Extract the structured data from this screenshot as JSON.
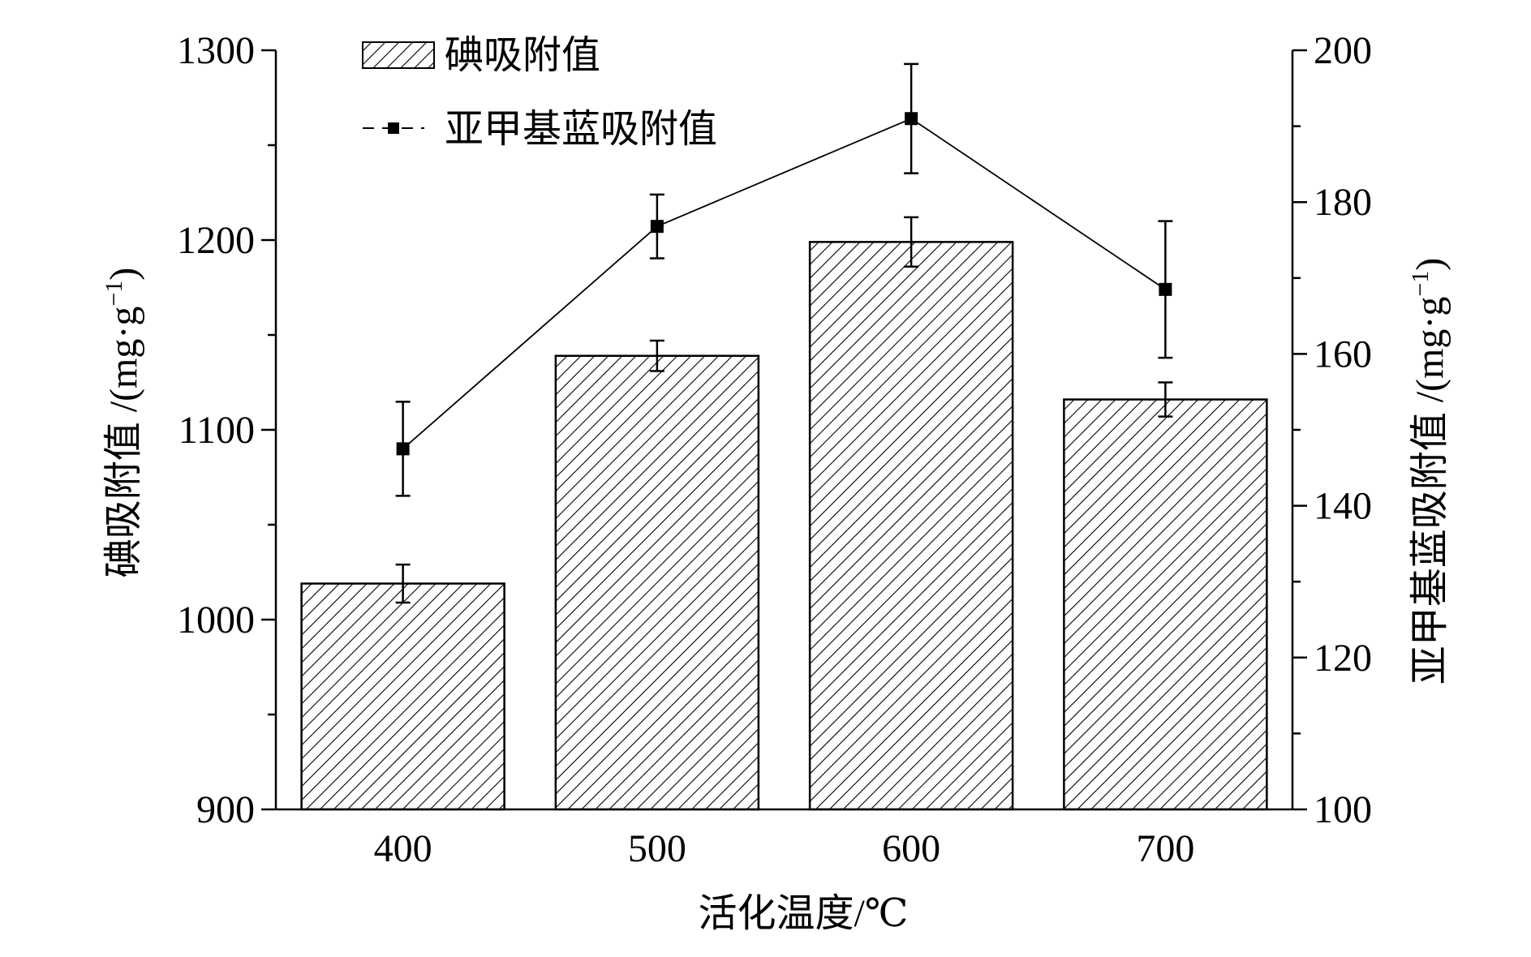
{
  "chart_data": {
    "type": "bar",
    "categories": [
      "400",
      "500",
      "600",
      "700"
    ],
    "xlabel": "活化温度/℃",
    "series": [
      {
        "name": "碘吸附值",
        "type": "bar",
        "axis": "left",
        "values": [
          1019,
          1139,
          1199,
          1116
        ],
        "errors": [
          10,
          8,
          13,
          9
        ]
      },
      {
        "name": "亚甲基蓝吸附值",
        "type": "line",
        "axis": "right",
        "values": [
          147.5,
          176.8,
          191,
          168.5
        ],
        "errors": [
          6.2,
          4.2,
          7.2,
          9.0
        ]
      }
    ],
    "y_left": {
      "label_main": "碘吸附值 /(mg·g",
      "label_sup": "−1",
      "label_end": ")",
      "ylim": [
        900,
        1300
      ],
      "major_ticks": [
        "900",
        "1000",
        "1100",
        "1200",
        "1300"
      ]
    },
    "y_right": {
      "label_main": "亚甲基蓝吸附值 /(mg·g",
      "label_sup": "−1",
      "label_end": ")",
      "ylim": [
        100,
        200
      ],
      "major_ticks": [
        "100",
        "120",
        "140",
        "160",
        "180",
        "200"
      ]
    },
    "legend_position": "top-left",
    "grid": false,
    "bar_fill": "diagonal hatch",
    "colors": {
      "ink": "#000000",
      "background": "#ffffff"
    }
  }
}
